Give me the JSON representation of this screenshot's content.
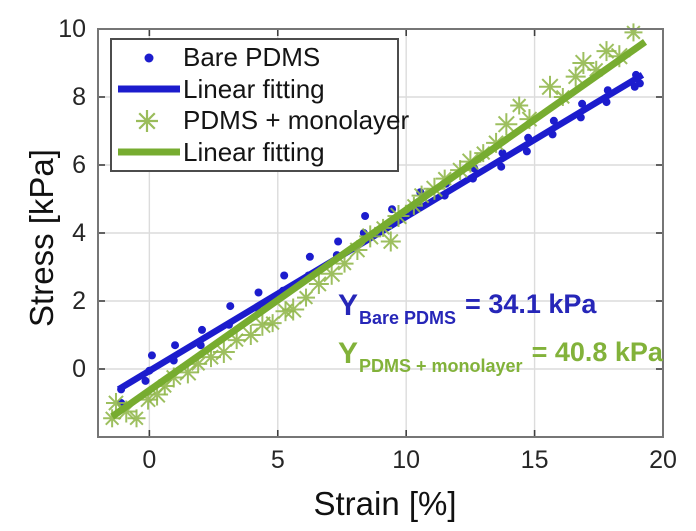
{
  "figure": {
    "xlabel": "Strain [%]",
    "ylabel": "Stress [kPa]"
  },
  "legend": {
    "items": [
      {
        "marker": "dot-icon",
        "color": "#1c1ccd",
        "label": "Bare PDMS"
      },
      {
        "marker": "thick-line-icon",
        "color": "#1c1ccd",
        "label": "Linear fitting"
      },
      {
        "marker": "asterisk-icon",
        "color": "#9abc5a",
        "label": "PDMS + monolayer"
      },
      {
        "marker": "thick-line-icon",
        "color": "#77ac30",
        "label": "Linear fitting"
      }
    ]
  },
  "annotations": {
    "bare_pdms": {
      "symbol": "Y",
      "subscript": "Bare PDMS",
      "value": "= 34.1 kPa",
      "color": "#2626b8"
    },
    "pdms_monolayer": {
      "symbol": "Y",
      "subscript": "PDMS + monolayer",
      "value": "= 40.8 kPa",
      "color": "#82b23a"
    }
  },
  "chart_data": {
    "type": "scatter",
    "title": "",
    "xlabel": "Strain [%]",
    "ylabel": "Stress [kPa]",
    "xlim": [
      -2,
      20
    ],
    "ylim": [
      -2,
      10
    ],
    "x_ticks": [
      0,
      5,
      10,
      15,
      20
    ],
    "y_ticks": [
      0,
      2,
      4,
      6,
      8,
      10
    ],
    "grid": true,
    "legend_position": "top-left",
    "colors": {
      "grid": "#dcdcdc",
      "axis_border": "#767676",
      "tick": "#3f3f3f"
    },
    "series": [
      {
        "name": "Bare PDMS",
        "type": "scatter",
        "marker": "dot",
        "color": "#1c1ccd",
        "points": [
          [
            -1.1,
            -1.0
          ],
          [
            -1.1,
            -0.6
          ],
          [
            -0.15,
            -0.35
          ],
          [
            0.0,
            -0.05
          ],
          [
            0.1,
            0.4
          ],
          [
            0.95,
            0.25
          ],
          [
            1.0,
            0.7
          ],
          [
            2.0,
            0.7
          ],
          [
            2.05,
            1.15
          ],
          [
            3.1,
            1.3
          ],
          [
            3.15,
            1.85
          ],
          [
            4.2,
            1.8
          ],
          [
            4.25,
            2.25
          ],
          [
            5.2,
            2.3
          ],
          [
            5.25,
            2.75
          ],
          [
            6.2,
            2.75
          ],
          [
            6.25,
            3.3
          ],
          [
            7.3,
            3.35
          ],
          [
            7.35,
            3.75
          ],
          [
            8.35,
            4.0
          ],
          [
            8.4,
            4.5
          ],
          [
            9.4,
            4.3
          ],
          [
            9.45,
            4.7
          ],
          [
            10.5,
            4.8
          ],
          [
            10.55,
            5.2
          ],
          [
            11.5,
            5.1
          ],
          [
            11.55,
            5.45
          ],
          [
            12.6,
            5.6
          ],
          [
            12.65,
            5.9
          ],
          [
            13.7,
            5.95
          ],
          [
            13.75,
            6.35
          ],
          [
            14.7,
            6.4
          ],
          [
            14.75,
            6.8
          ],
          [
            15.7,
            6.9
          ],
          [
            15.75,
            7.3
          ],
          [
            16.8,
            7.4
          ],
          [
            16.85,
            7.8
          ],
          [
            17.8,
            7.85
          ],
          [
            17.85,
            8.2
          ],
          [
            18.9,
            8.3
          ],
          [
            18.95,
            8.65
          ],
          [
            19.1,
            8.4
          ]
        ]
      },
      {
        "name": "Linear fitting (Bare PDMS)",
        "type": "line",
        "color": "#1c1ccd",
        "x_start": -1.2,
        "y_start": -0.6,
        "x_end": 19.2,
        "y_end": 8.65,
        "youngs_modulus_kpa": 34.1
      },
      {
        "name": "PDMS + monolayer",
        "type": "scatter",
        "marker": "asterisk",
        "color": "#93b94e",
        "points": [
          [
            -1.45,
            -1.45
          ],
          [
            -1.3,
            -1.0
          ],
          [
            -0.9,
            -1.25
          ],
          [
            -0.5,
            -1.45
          ],
          [
            -0.05,
            -0.9
          ],
          [
            0.3,
            -0.75
          ],
          [
            0.6,
            -0.5
          ],
          [
            0.95,
            -0.25
          ],
          [
            1.5,
            -0.1
          ],
          [
            1.9,
            0.15
          ],
          [
            2.4,
            0.35
          ],
          [
            2.9,
            0.5
          ],
          [
            3.4,
            0.85
          ],
          [
            3.95,
            1.0
          ],
          [
            4.4,
            1.3
          ],
          [
            4.8,
            1.35
          ],
          [
            5.3,
            1.7
          ],
          [
            5.6,
            1.75
          ],
          [
            6.1,
            2.1
          ],
          [
            6.6,
            2.5
          ],
          [
            7.1,
            2.8
          ],
          [
            7.6,
            3.1
          ],
          [
            8.1,
            3.5
          ],
          [
            8.6,
            3.9
          ],
          [
            9.1,
            4.15
          ],
          [
            9.4,
            3.75
          ],
          [
            9.7,
            4.5
          ],
          [
            10.3,
            4.8
          ],
          [
            10.6,
            5.1
          ],
          [
            11.1,
            5.3
          ],
          [
            11.5,
            5.6
          ],
          [
            12.1,
            5.85
          ],
          [
            12.5,
            6.1
          ],
          [
            13.0,
            6.35
          ],
          [
            13.5,
            6.65
          ],
          [
            13.9,
            7.2
          ],
          [
            14.4,
            7.75
          ],
          [
            14.8,
            7.35
          ],
          [
            15.6,
            8.3
          ],
          [
            16.1,
            8.0
          ],
          [
            16.6,
            8.6
          ],
          [
            16.9,
            9.0
          ],
          [
            17.4,
            8.8
          ],
          [
            17.8,
            9.35
          ],
          [
            18.3,
            9.2
          ],
          [
            18.85,
            9.9
          ]
        ]
      },
      {
        "name": "Linear fitting (PDMS + monolayer)",
        "type": "line",
        "color": "#77ac30",
        "x_start": -1.45,
        "y_start": -1.4,
        "x_end": 19.3,
        "y_end": 9.62,
        "youngs_modulus_kpa": 40.8
      }
    ]
  }
}
